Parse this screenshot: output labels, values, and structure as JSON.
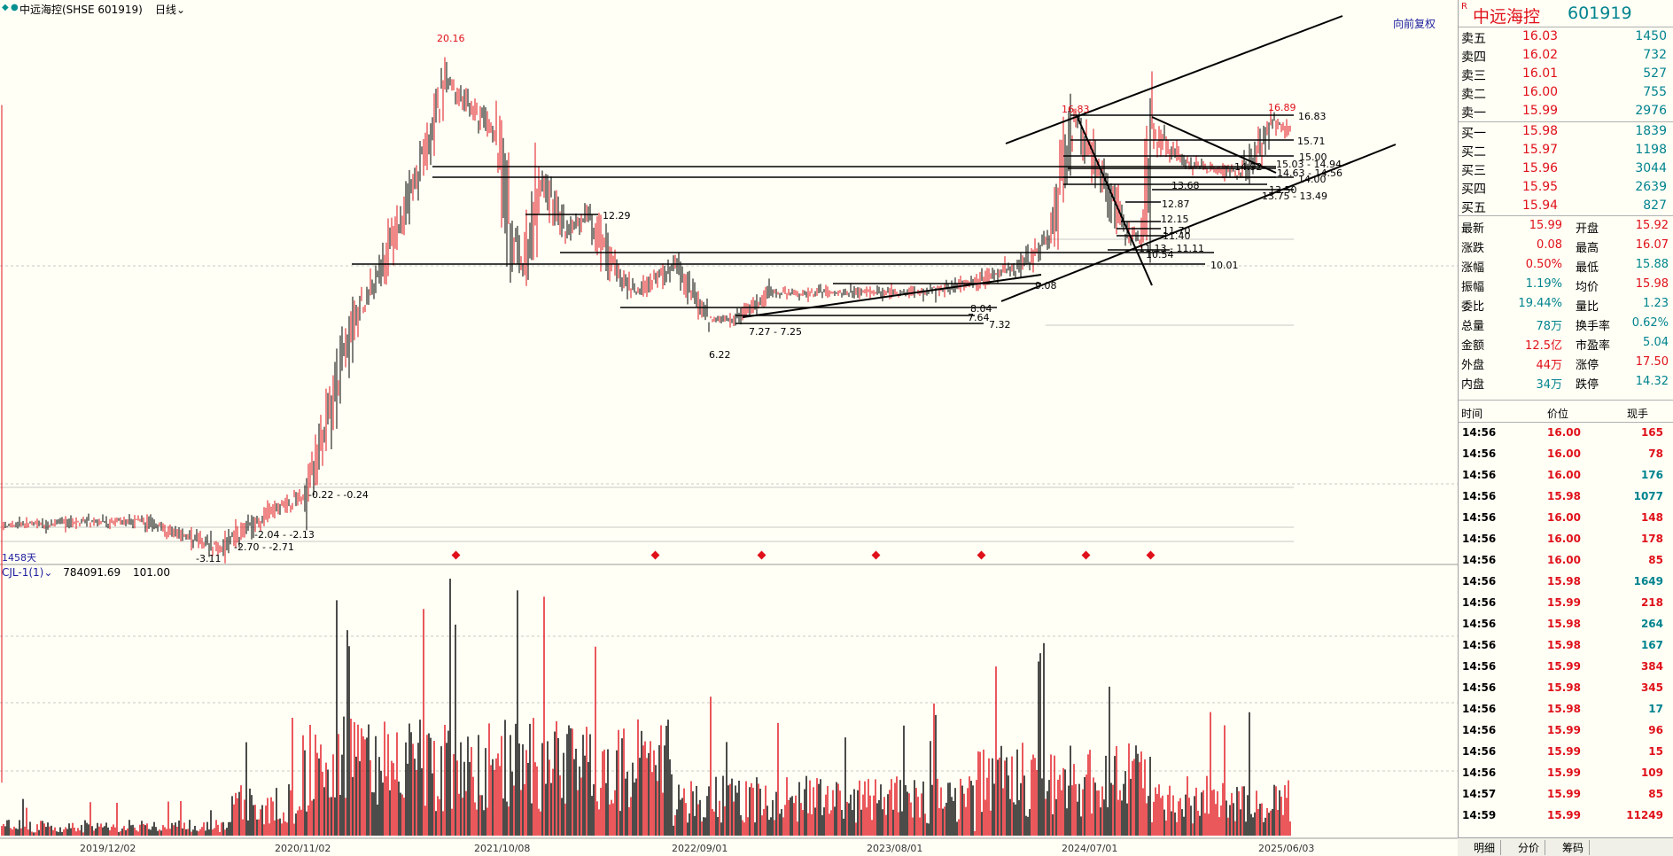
{
  "topbar": {
    "stock": "中远海控(SHSE 601919)",
    "period": "日线",
    "adjust": "向前复权",
    "days": "1458天"
  },
  "indicator": {
    "name": "CJL-1(1)",
    "value1": "784091.69",
    "value2": "101.00"
  },
  "date_axis": [
    "2019/12/02",
    "2020/11/02",
    "2021/10/08",
    "2022/09/01",
    "2023/08/01",
    "2024/07/01",
    "2025/06/03"
  ],
  "price_annotations": [
    "20.16",
    "12.29",
    "10.01",
    "9.08",
    "8.04",
    "7.64",
    "7.32",
    "7.27 - 7.25",
    "6.22",
    "16.83",
    "16.89",
    "16.83",
    "15.71",
    "15.00",
    "15.03 - 14.94",
    "14.63 - 14.56",
    "14.00",
    "13.50",
    "13.75 - 13.49",
    "13.68",
    "12.87",
    "12.15",
    "11.70",
    "11.40",
    "11.13 - 11.11",
    "10.54",
    "-0.22 - -0.24",
    "-2.04 - -2.13",
    "-2.70 - -2.71",
    "-3.11",
    "14.92"
  ],
  "quote": {
    "title_name": "中远海控",
    "title_code": "601919",
    "r_label": "R",
    "asks": [
      {
        "label": "卖五",
        "price": "16.03",
        "vol": "1450"
      },
      {
        "label": "卖四",
        "price": "16.02",
        "vol": "732"
      },
      {
        "label": "卖三",
        "price": "16.01",
        "vol": "527"
      },
      {
        "label": "卖二",
        "price": "16.00",
        "vol": "755"
      },
      {
        "label": "卖一",
        "price": "15.99",
        "vol": "2976"
      }
    ],
    "bids": [
      {
        "label": "买一",
        "price": "15.98",
        "vol": "1839"
      },
      {
        "label": "买二",
        "price": "15.97",
        "vol": "1198"
      },
      {
        "label": "买三",
        "price": "15.96",
        "vol": "3044"
      },
      {
        "label": "买四",
        "price": "15.95",
        "vol": "2639"
      },
      {
        "label": "买五",
        "price": "15.94",
        "vol": "827"
      }
    ],
    "stats": [
      {
        "l1": "最新",
        "v1": "15.99",
        "c1": "red",
        "l2": "开盘",
        "v2": "15.92",
        "c2": "red"
      },
      {
        "l1": "涨跌",
        "v1": "0.08",
        "c1": "red",
        "l2": "最高",
        "v2": "16.07",
        "c2": "red"
      },
      {
        "l1": "涨幅",
        "v1": "0.50%",
        "c1": "red",
        "l2": "最低",
        "v2": "15.88",
        "c2": "green"
      },
      {
        "l1": "振幅",
        "v1": "1.19%",
        "c1": "teal",
        "l2": "均价",
        "v2": "15.98",
        "c2": "red"
      },
      {
        "l1": "委比",
        "v1": "19.44%",
        "c1": "teal",
        "l2": "量比",
        "v2": "1.23",
        "c2": "teal"
      },
      {
        "l1": "总量",
        "v1": "78万",
        "c1": "teal",
        "l2": "换手率",
        "v2": "0.62%",
        "c2": "teal"
      },
      {
        "l1": "金额",
        "v1": "12.5亿",
        "c1": "red",
        "l2": "市盈率",
        "v2": "5.04",
        "c2": "teal"
      },
      {
        "l1": "外盘",
        "v1": "44万",
        "c1": "red",
        "l2": "涨停",
        "v2": "17.50",
        "c2": "red"
      },
      {
        "l1": "内盘",
        "v1": "34万",
        "c1": "teal",
        "l2": "跌停",
        "v2": "14.32",
        "c2": "teal"
      }
    ],
    "tick_headers": {
      "time": "时间",
      "price": "价位",
      "vol": "现手"
    },
    "ticks": [
      {
        "time": "14:56",
        "price": "16.00",
        "vol": "165",
        "c": "red"
      },
      {
        "time": "14:56",
        "price": "16.00",
        "vol": "78",
        "c": "red"
      },
      {
        "time": "14:56",
        "price": "16.00",
        "vol": "176",
        "c": "teal"
      },
      {
        "time": "14:56",
        "price": "15.98",
        "vol": "1077",
        "c": "teal"
      },
      {
        "time": "14:56",
        "price": "16.00",
        "vol": "148",
        "c": "red"
      },
      {
        "time": "14:56",
        "price": "16.00",
        "vol": "178",
        "c": "red"
      },
      {
        "time": "14:56",
        "price": "16.00",
        "vol": "85",
        "c": "red"
      },
      {
        "time": "14:56",
        "price": "15.98",
        "vol": "1649",
        "c": "teal"
      },
      {
        "time": "14:56",
        "price": "15.99",
        "vol": "218",
        "c": "red"
      },
      {
        "time": "14:56",
        "price": "15.98",
        "vol": "264",
        "c": "teal"
      },
      {
        "time": "14:56",
        "price": "15.98",
        "vol": "167",
        "c": "teal"
      },
      {
        "time": "14:56",
        "price": "15.99",
        "vol": "384",
        "c": "red"
      },
      {
        "time": "14:56",
        "price": "15.98",
        "vol": "345",
        "c": "red"
      },
      {
        "time": "14:56",
        "price": "15.98",
        "vol": "17",
        "c": "teal"
      },
      {
        "time": "14:56",
        "price": "15.99",
        "vol": "96",
        "c": "red"
      },
      {
        "time": "14:56",
        "price": "15.99",
        "vol": "15",
        "c": "red"
      },
      {
        "time": "14:56",
        "price": "15.99",
        "vol": "109",
        "c": "red"
      },
      {
        "time": "14:57",
        "price": "15.99",
        "vol": "85",
        "c": "red"
      },
      {
        "time": "14:59",
        "price": "15.99",
        "vol": "11249",
        "c": "red"
      }
    ],
    "tabs": [
      "明细",
      "分价",
      "筹码"
    ]
  }
}
